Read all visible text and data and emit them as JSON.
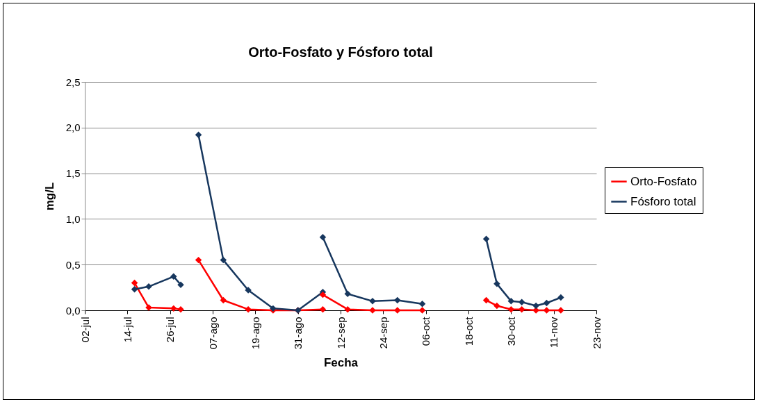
{
  "chart_data": {
    "type": "line",
    "title": "Orto-Fosfato y Fósforo total",
    "xlabel": "Fecha",
    "ylabel": "mg/L",
    "ylim": [
      0,
      2.5
    ],
    "yticks": [
      {
        "value": 0,
        "label": "0,0"
      },
      {
        "value": 0.5,
        "label": "0,5"
      },
      {
        "value": 1,
        "label": "1,0"
      },
      {
        "value": 1.5,
        "label": "1,5"
      },
      {
        "value": 2,
        "label": "2,0"
      },
      {
        "value": 2.5,
        "label": "2,5"
      }
    ],
    "xlim": [
      "--07-02",
      "--11-23"
    ],
    "xticks": [
      {
        "value": "--07-02",
        "label": "02-jul"
      },
      {
        "value": "--07-14",
        "label": "14-jul"
      },
      {
        "value": "--07-26",
        "label": "26-jul"
      },
      {
        "value": "--08-07",
        "label": "07-ago"
      },
      {
        "value": "--08-19",
        "label": "19-ago"
      },
      {
        "value": "--08-31",
        "label": "31-ago"
      },
      {
        "value": "--09-12",
        "label": "12-sep"
      },
      {
        "value": "--09-24",
        "label": "24-sep"
      },
      {
        "value": "--10-06",
        "label": "06-oct"
      },
      {
        "value": "--10-18",
        "label": "18-oct"
      },
      {
        "value": "--10-30",
        "label": "30-oct"
      },
      {
        "value": "--11-11",
        "label": "11-nov"
      },
      {
        "value": "--11-23",
        "label": "23-nov"
      }
    ],
    "grid": "y",
    "legend": "right",
    "marker": "diamond",
    "line_style": "solid",
    "series": [
      {
        "name": "Orto-Fosfato",
        "color": "#ff0000",
        "x": [
          "--07-16",
          "--07-20",
          "--07-27",
          "--07-29",
          null,
          "--08-03",
          "--08-10",
          "--08-17",
          "--08-24",
          "--08-31",
          "--09-07",
          null,
          "--09-07",
          "--09-14",
          "--09-21",
          "--09-28",
          "--10-05",
          null,
          "--10-23",
          "--10-26",
          "--10-30",
          "--11-02",
          "--11-06",
          "--11-09",
          "--11-13"
        ],
        "values": [
          0.3,
          0.03,
          0.02,
          0.01,
          null,
          0.55,
          0.11,
          0.01,
          0.0,
          0.0,
          0.01,
          null,
          0.17,
          0.01,
          0.0,
          0.0,
          0.0,
          null,
          0.11,
          0.05,
          0.01,
          0.01,
          0.0,
          0.0,
          0.0
        ]
      },
      {
        "name": "Fósforo total",
        "color": "#17375e",
        "x": [
          "--07-16",
          "--07-20",
          "--07-27",
          "--07-29",
          null,
          "--08-03",
          "--08-10",
          "--08-17",
          "--08-24",
          "--08-31",
          "--09-07",
          null,
          "--09-07",
          "--09-14",
          "--09-21",
          "--09-28",
          "--10-05",
          null,
          "--10-23",
          "--10-26",
          "--10-30",
          "--11-02",
          "--11-06",
          "--11-09",
          "--11-13"
        ],
        "values": [
          0.23,
          0.26,
          0.37,
          0.28,
          null,
          1.92,
          0.55,
          0.22,
          0.02,
          0.0,
          0.2,
          null,
          0.8,
          0.18,
          0.1,
          0.11,
          0.07,
          null,
          0.78,
          0.29,
          0.1,
          0.09,
          0.05,
          0.08,
          0.14
        ]
      }
    ]
  }
}
